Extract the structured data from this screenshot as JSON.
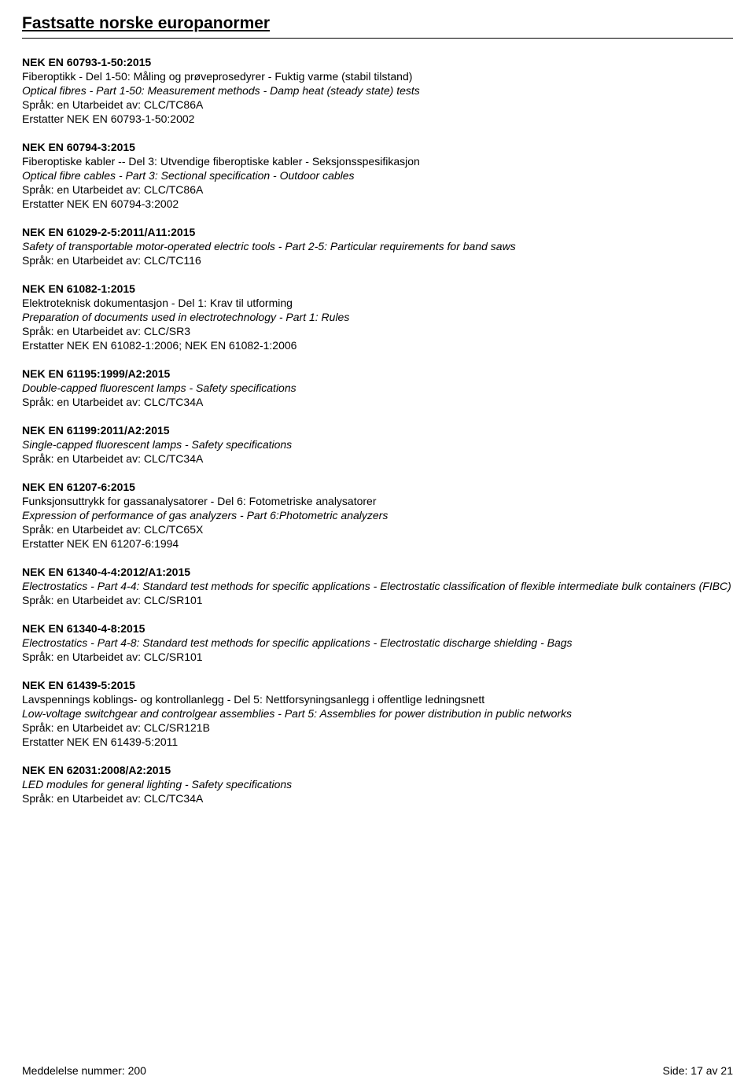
{
  "section_title": "Fastsatte norske europanormer",
  "entries": [
    {
      "code": "NEK EN 60793-1-50:2015",
      "nor": "Fiberoptikk - Del 1-50: Måling og prøveprosedyrer - Fuktig varme (stabil tilstand)",
      "eng": "Optical fibres - Part 1-50: Measurement methods - Damp heat (steady state) tests",
      "meta": "Språk: en   Utarbeidet av: CLC/TC86A",
      "replaces": "Erstatter NEK EN 60793-1-50:2002"
    },
    {
      "code": "NEK EN 60794-3:2015",
      "nor": "Fiberoptiske kabler -- Del 3: Utvendige fiberoptiske kabler - Seksjonsspesifikasjon",
      "eng": "Optical fibre cables - Part 3: Sectional specification - Outdoor cables",
      "meta": "Språk: en   Utarbeidet av: CLC/TC86A",
      "replaces": "Erstatter NEK EN 60794-3:2002"
    },
    {
      "code": "NEK EN 61029-2-5:2011/A11:2015",
      "nor": "",
      "eng": "Safety of transportable motor-operated electric tools - Part 2-5: Particular requirements for band saws",
      "meta": "Språk: en   Utarbeidet av: CLC/TC116",
      "replaces": ""
    },
    {
      "code": "NEK EN 61082-1:2015",
      "nor": "Elektroteknisk dokumentasjon - Del 1: Krav til utforming",
      "eng": "Preparation of documents used in electrotechnology - Part 1: Rules",
      "meta": "Språk: en   Utarbeidet av: CLC/SR3",
      "replaces": "Erstatter NEK EN 61082-1:2006; NEK EN 61082-1:2006"
    },
    {
      "code": "NEK EN 61195:1999/A2:2015",
      "nor": "",
      "eng": "Double-capped fluorescent lamps - Safety specifications",
      "meta": "Språk: en   Utarbeidet av: CLC/TC34A",
      "replaces": ""
    },
    {
      "code": "NEK EN 61199:2011/A2:2015",
      "nor": "",
      "eng": "Single-capped fluorescent lamps - Safety specifications",
      "meta": "Språk: en   Utarbeidet av: CLC/TC34A",
      "replaces": ""
    },
    {
      "code": "NEK EN 61207-6:2015",
      "nor": "Funksjonsuttrykk for gassanalysatorer - Del 6: Fotometriske analysatorer",
      "eng": "Expression of performance of gas analyzers - Part 6:Photometric analyzers",
      "meta": "Språk: en   Utarbeidet av: CLC/TC65X",
      "replaces": "Erstatter NEK EN 61207-6:1994"
    },
    {
      "code": "NEK EN 61340-4-4:2012/A1:2015",
      "nor": "",
      "eng": "Electrostatics - Part 4-4: Standard test methods for specific applications - Electrostatic classification of flexible intermediate bulk containers (FIBC)",
      "meta": "Språk: en   Utarbeidet av: CLC/SR101",
      "replaces": ""
    },
    {
      "code": "NEK EN 61340-4-8:2015",
      "nor": "",
      "eng": "Electrostatics - Part 4-8: Standard test methods for specific applications - Electrostatic discharge shielding - Bags",
      "meta": "Språk: en   Utarbeidet av: CLC/SR101",
      "replaces": ""
    },
    {
      "code": "NEK EN 61439-5:2015",
      "nor": "Lavspennings koblings- og kontrollanlegg - Del 5: Nettforsyningsanlegg i offentlige ledningsnett",
      "eng": "Low-voltage switchgear and controlgear assemblies - Part 5: Assemblies for power distribution in public networks",
      "meta": "Språk: en   Utarbeidet av: CLC/SR121B",
      "replaces": "Erstatter NEK EN 61439-5:2011"
    },
    {
      "code": "NEK EN 62031:2008/A2:2015",
      "nor": "",
      "eng": "LED modules for general lighting - Safety specifications",
      "meta": "Språk: en   Utarbeidet av: CLC/TC34A",
      "replaces": ""
    }
  ],
  "footer": {
    "left": "Meddelelse nummer: 200",
    "right": "Side: 17 av 21"
  }
}
